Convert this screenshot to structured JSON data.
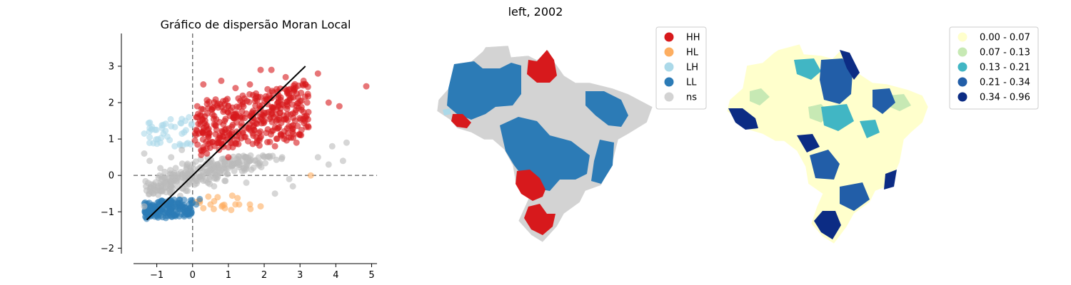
{
  "figure": {
    "suptitle": "left, 2002"
  },
  "chart_data": [
    {
      "type": "scatter",
      "title": "Gráfico de dispersão Moran Local",
      "xlabel": "",
      "ylabel": "",
      "xlim": [
        -1.65,
        5.15
      ],
      "ylim": [
        -2.15,
        3.9
      ],
      "xticks": [
        -1,
        0,
        1,
        2,
        3,
        4,
        5
      ],
      "yticks": [
        -2,
        -1,
        0,
        1,
        2,
        3
      ],
      "reference_lines": {
        "x": 0,
        "y": 0,
        "style": "dashed",
        "color": "#6e6e6e"
      },
      "fit_line": {
        "x": [
          -1.28,
          3.15
        ],
        "y": [
          -1.22,
          3.0
        ],
        "color": "#000000"
      },
      "colors": {
        "HH": "#d7191c",
        "HL": "#fdae61",
        "LH": "#abd9e9",
        "LL": "#2c7bb6",
        "ns": "#bababa"
      },
      "series": [
        {
          "name": "HH",
          "color": "#d7191c",
          "points": [
            [
              0.1,
              1.6
            ],
            [
              0.3,
              2.5
            ],
            [
              0.8,
              2.6
            ],
            [
              1.2,
              2.4
            ],
            [
              1.6,
              2.5
            ],
            [
              1.9,
              2.9
            ],
            [
              2.2,
              2.9
            ],
            [
              2.6,
              2.7
            ],
            [
              3.1,
              2.6
            ],
            [
              3.5,
              2.8
            ],
            [
              2.9,
              1.9
            ],
            [
              3.2,
              2.0
            ],
            [
              3.8,
              2.0
            ],
            [
              4.1,
              1.9
            ],
            [
              4.85,
              2.45
            ],
            [
              0.6,
              1.4
            ],
            [
              1.5,
              1.7
            ],
            [
              2.4,
              2.2
            ],
            [
              0.4,
              0.6
            ],
            [
              1.0,
              0.5
            ],
            [
              2.3,
              0.8
            ],
            [
              2.9,
              0.9
            ]
          ]
        },
        {
          "name": "HL",
          "color": "#fdae61",
          "points": [
            [
              0.2,
              -0.7
            ],
            [
              0.3,
              -0.9
            ],
            [
              0.5,
              -0.8
            ],
            [
              0.7,
              -0.6
            ],
            [
              0.9,
              -0.9
            ],
            [
              1.3,
              -0.8
            ],
            [
              1.6,
              -0.8
            ],
            [
              1.9,
              -0.85
            ],
            [
              3.3,
              0.0
            ]
          ]
        },
        {
          "name": "LH",
          "color": "#abd9e9",
          "points": [
            [
              -1.35,
              1.15
            ],
            [
              -1.2,
              1.05
            ],
            [
              -1.05,
              1.25
            ],
            [
              -0.85,
              1.3
            ],
            [
              -0.6,
              1.35
            ],
            [
              -0.3,
              1.55
            ],
            [
              -0.2,
              1.5
            ],
            [
              -0.1,
              1.6
            ],
            [
              -0.5,
              0.8
            ],
            [
              -0.9,
              0.9
            ]
          ]
        },
        {
          "name": "LL",
          "color": "#2c7bb6",
          "points": [
            [
              -1.3,
              -1.15
            ],
            [
              -1.2,
              -1.0
            ],
            [
              -1.0,
              -1.1
            ],
            [
              -0.8,
              -0.9
            ],
            [
              -0.6,
              -0.7
            ],
            [
              -0.4,
              -0.75
            ],
            [
              -0.2,
              -0.9
            ],
            [
              0.0,
              -0.75
            ],
            [
              0.1,
              -0.8
            ],
            [
              0.2,
              -0.65
            ],
            [
              -0.5,
              -1.1
            ]
          ]
        },
        {
          "name": "ns",
          "color": "#bababa",
          "points": [
            [
              -1.35,
              0.6
            ],
            [
              -1.2,
              0.4
            ],
            [
              -1.3,
              -0.3
            ],
            [
              -1.35,
              -0.85
            ],
            [
              -0.9,
              0.2
            ],
            [
              -0.6,
              0.5
            ],
            [
              -0.3,
              0.7
            ],
            [
              0.4,
              0.3
            ],
            [
              1.0,
              0.2
            ],
            [
              1.6,
              0.4
            ],
            [
              2.5,
              0.5
            ],
            [
              3.5,
              0.5
            ],
            [
              3.9,
              0.8
            ],
            [
              4.2,
              0.4
            ],
            [
              4.3,
              0.9
            ],
            [
              3.8,
              0.3
            ],
            [
              2.7,
              -0.1
            ],
            [
              2.8,
              -0.3
            ],
            [
              1.5,
              -0.2
            ],
            [
              0.6,
              -0.3
            ],
            [
              2.3,
              -0.5
            ]
          ]
        }
      ]
    },
    {
      "type": "map",
      "legend": [
        {
          "label": "HH",
          "color": "#d7191c"
        },
        {
          "label": "HL",
          "color": "#fdae61"
        },
        {
          "label": "LH",
          "color": "#abd9e9"
        },
        {
          "label": "LL",
          "color": "#2c7bb6"
        },
        {
          "label": "ns",
          "color": "#d3d3d3"
        }
      ]
    },
    {
      "type": "map",
      "legend": [
        {
          "label": "0.00 - 0.07",
          "color": "#ffffcc"
        },
        {
          "label": "0.07 - 0.13",
          "color": "#c7e9b4"
        },
        {
          "label": "0.13 - 0.21",
          "color": "#41b6c4"
        },
        {
          "label": "0.21 - 0.34",
          "color": "#225ea8"
        },
        {
          "label": "0.34 - 0.96",
          "color": "#0c2c84"
        }
      ]
    }
  ]
}
